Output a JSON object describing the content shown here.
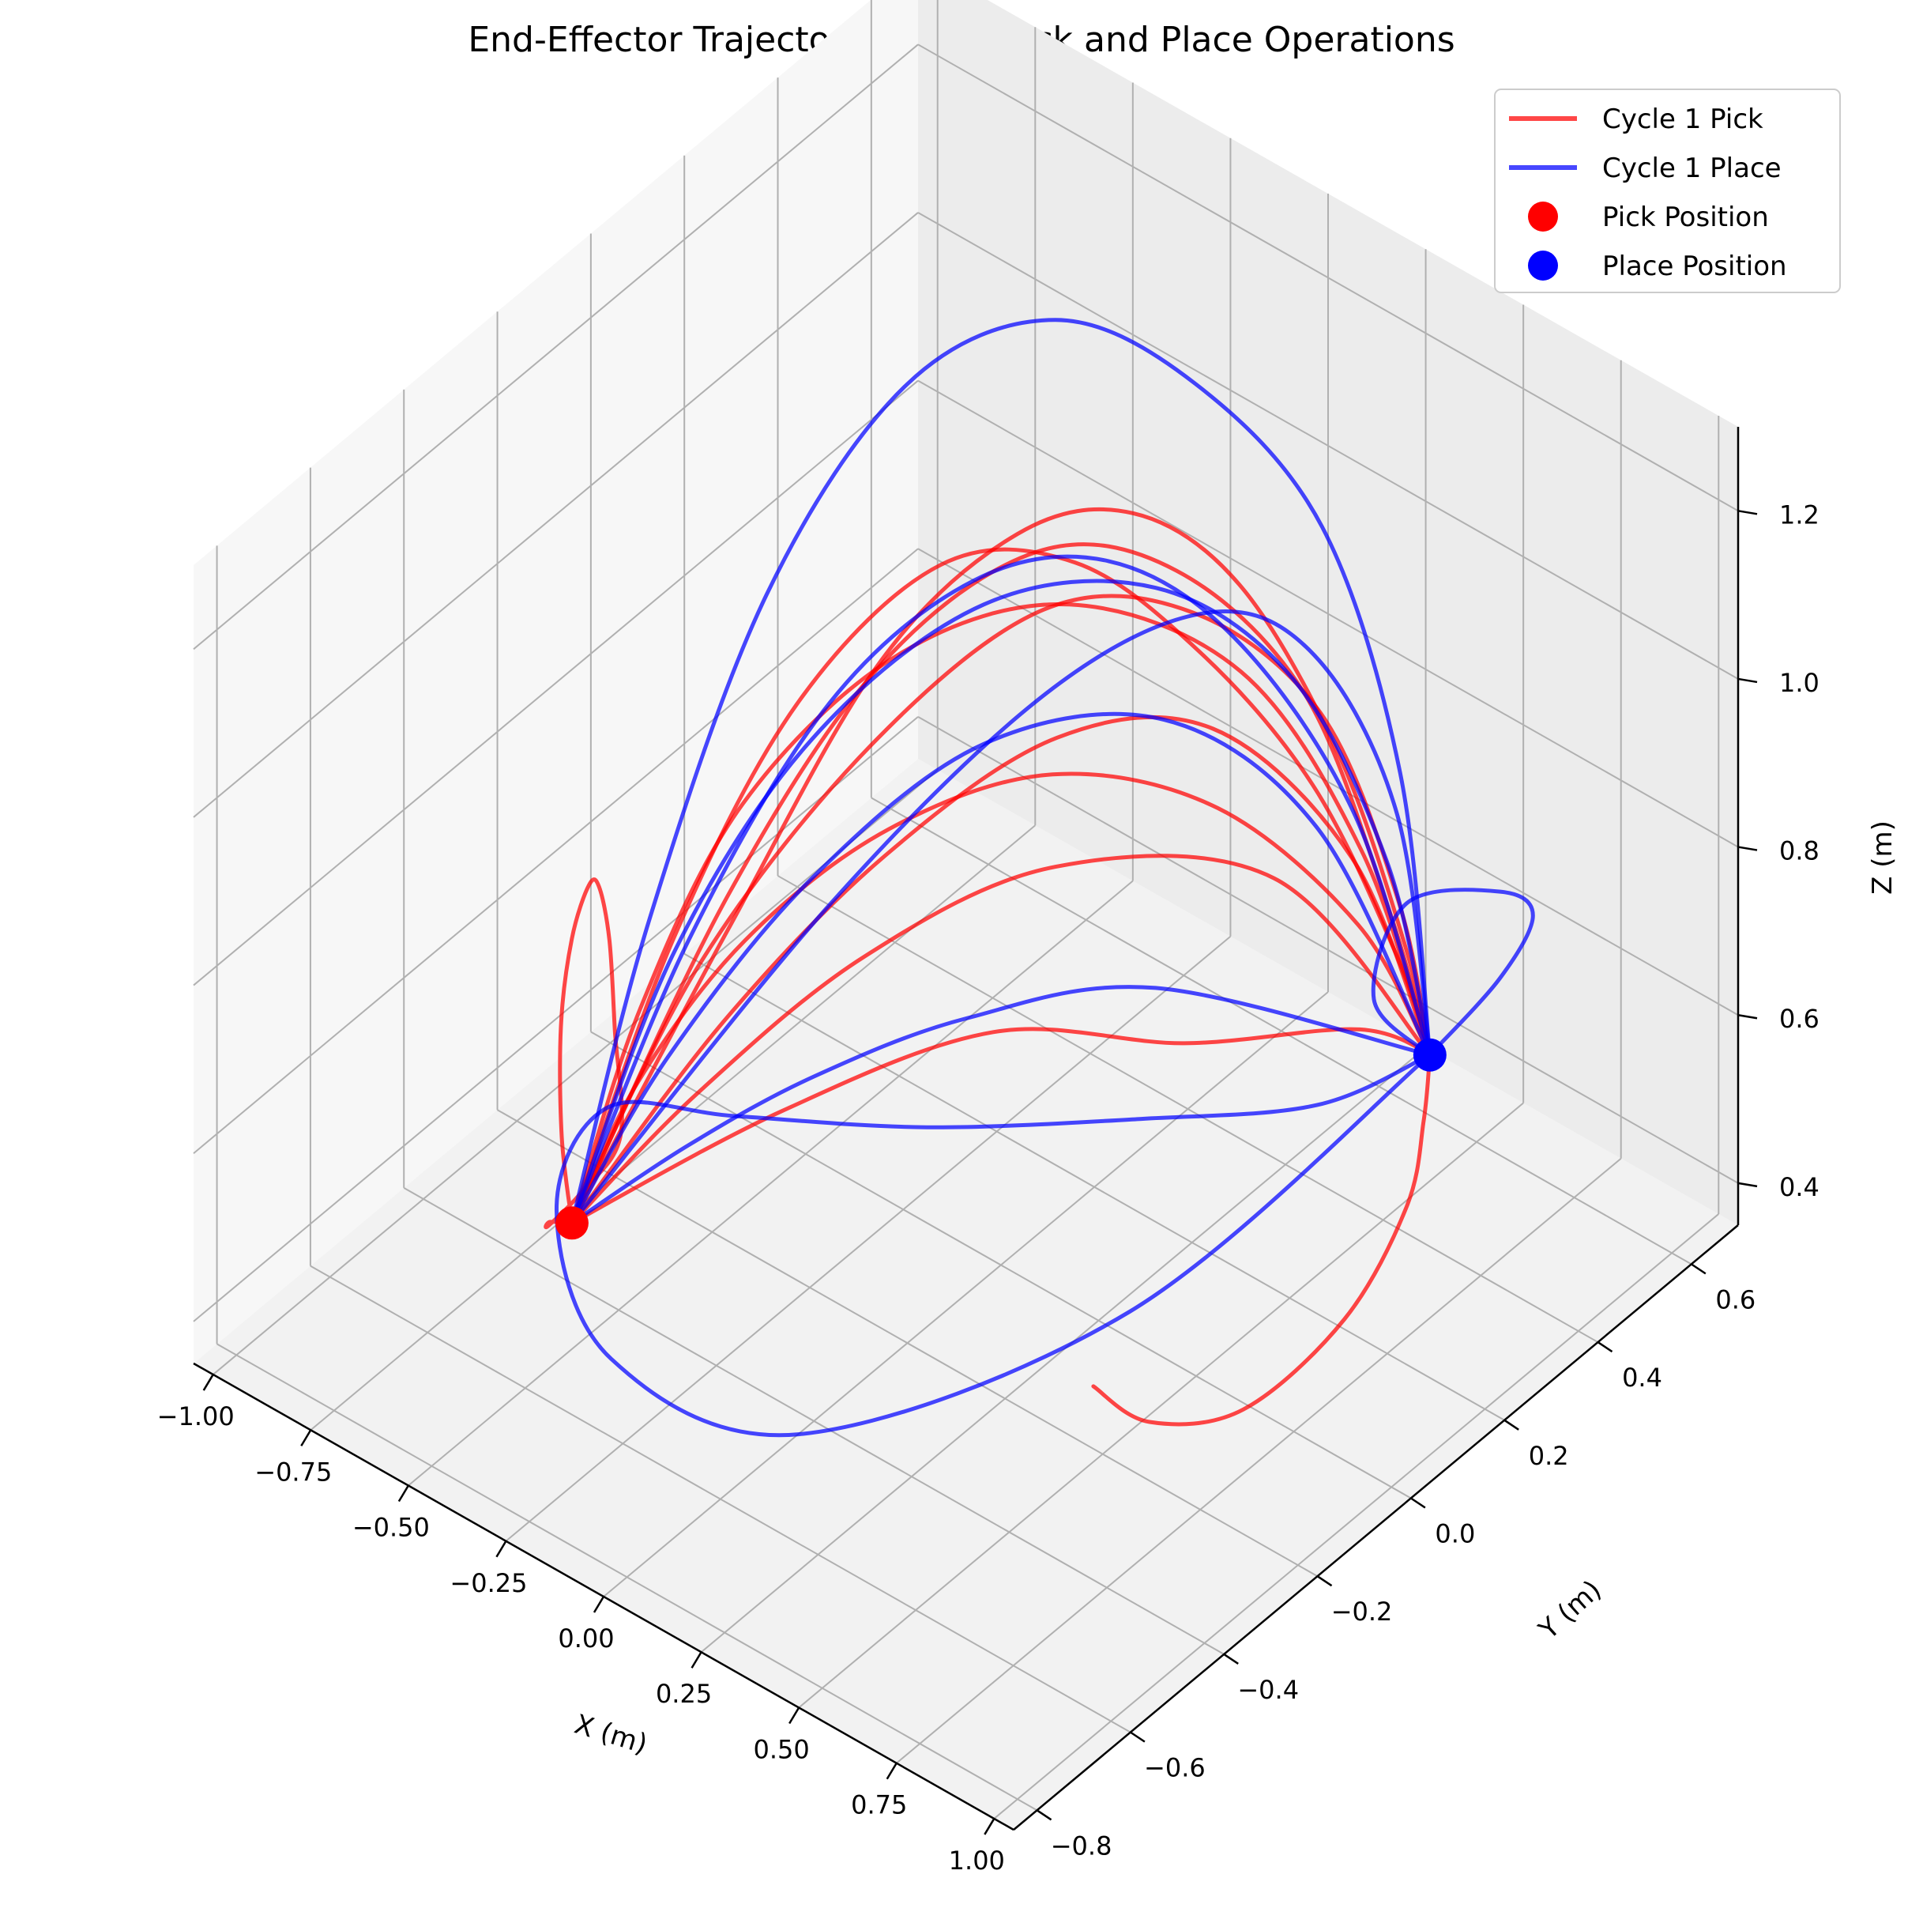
{
  "chart_data": {
    "type": "line",
    "projection": "3d",
    "title": "End-Effector Trajectory During Pick and Place Operations",
    "xlabel": "X (m)",
    "ylabel": "Y (m)",
    "zlabel": "Z (m)",
    "xlim": [
      -1.05,
      1.05
    ],
    "ylim": [
      -0.85,
      0.7
    ],
    "zlim": [
      0.35,
      1.3
    ],
    "xticks": [
      -1.0,
      -0.75,
      -0.5,
      -0.25,
      0.0,
      0.25,
      0.5,
      0.75,
      1.0
    ],
    "xtick_labels": [
      "−1.00",
      "−0.75",
      "−0.50",
      "−0.25",
      "0.00",
      "0.25",
      "0.50",
      "0.75",
      "1.00"
    ],
    "yticks": [
      -0.8,
      -0.6,
      -0.4,
      -0.2,
      0.0,
      0.2,
      0.4,
      0.6
    ],
    "ytick_labels": [
      "−0.8",
      "−0.6",
      "−0.4",
      "−0.2",
      "0.0",
      "0.2",
      "0.4",
      "0.6"
    ],
    "zticks": [
      0.4,
      0.6,
      0.8,
      1.0,
      1.2
    ],
    "ztick_labels": [
      "0.4",
      "0.6",
      "0.8",
      "1.0",
      "1.2"
    ],
    "grid": true,
    "legend_position": "top-right",
    "legend": [
      {
        "label": "Cycle 1 Pick",
        "kind": "line",
        "color": "#ff0000"
      },
      {
        "label": "Cycle 1 Place",
        "kind": "line",
        "color": "#0000ff"
      },
      {
        "label": "Pick Position",
        "kind": "marker",
        "color": "#ff0000"
      },
      {
        "label": "Place Position",
        "kind": "marker",
        "color": "#0000ff"
      }
    ],
    "pick_position": {
      "x": -0.5,
      "y": -0.5,
      "z": 0.5
    },
    "place_position": {
      "x": 0.5,
      "y": 0.5,
      "z": 0.5
    },
    "series": [
      {
        "role": "pick",
        "color": "#ff0000",
        "x": [
          -0.5,
          -0.55,
          -0.6,
          -0.62,
          -0.6,
          -0.55,
          -0.5,
          -0.45,
          -0.4,
          -0.45,
          -0.5,
          -0.52,
          -0.5
        ],
        "y": [
          -0.5,
          -0.48,
          -0.44,
          -0.4,
          -0.38,
          -0.4,
          -0.42,
          -0.45,
          -0.48,
          -0.52,
          -0.55,
          -0.53,
          -0.5
        ],
        "z": [
          0.5,
          0.58,
          0.68,
          0.76,
          0.82,
          0.84,
          0.8,
          0.72,
          0.62,
          0.56,
          0.52,
          0.51,
          0.5
        ]
      },
      {
        "role": "pick",
        "color": "#ff0000",
        "x": [
          -0.5,
          -0.35,
          -0.15,
          0.05,
          0.25,
          0.4,
          0.48,
          0.5
        ],
        "y": [
          -0.5,
          -0.35,
          -0.15,
          0.05,
          0.2,
          0.35,
          0.45,
          0.5
        ],
        "z": [
          0.5,
          0.78,
          1.0,
          1.12,
          1.1,
          0.95,
          0.7,
          0.5
        ]
      },
      {
        "role": "pick",
        "color": "#ff0000",
        "x": [
          -0.5,
          -0.4,
          -0.25,
          -0.05,
          0.15,
          0.32,
          0.44,
          0.5
        ],
        "y": [
          -0.5,
          -0.25,
          -0.05,
          0.12,
          0.25,
          0.38,
          0.46,
          0.5
        ],
        "z": [
          0.5,
          0.8,
          1.02,
          1.13,
          1.1,
          0.94,
          0.68,
          0.5
        ]
      },
      {
        "role": "pick",
        "color": "#ff0000",
        "x": [
          -0.5,
          -0.42,
          -0.3,
          -0.12,
          0.08,
          0.28,
          0.42,
          0.5
        ],
        "y": [
          -0.5,
          -0.42,
          -0.3,
          -0.12,
          0.08,
          0.28,
          0.42,
          0.5
        ],
        "z": [
          0.5,
          0.74,
          0.96,
          1.1,
          1.12,
          1.0,
          0.76,
          0.5
        ]
      },
      {
        "role": "pick",
        "color": "#ff0000",
        "x": [
          -0.5,
          -0.3,
          -0.05,
          0.2,
          0.4,
          0.5
        ],
        "y": [
          -0.5,
          -0.4,
          -0.25,
          -0.05,
          0.25,
          0.5
        ],
        "z": [
          0.5,
          0.66,
          0.82,
          0.9,
          0.8,
          0.5
        ]
      },
      {
        "role": "pick",
        "color": "#ff0000",
        "x": [
          -0.5,
          -0.48,
          -0.4,
          -0.25,
          -0.05,
          0.15,
          0.32,
          0.45,
          0.5
        ],
        "y": [
          -0.5,
          -0.3,
          -0.1,
          0.08,
          0.2,
          0.3,
          0.4,
          0.47,
          0.5
        ],
        "z": [
          0.5,
          0.75,
          0.96,
          1.08,
          1.08,
          0.98,
          0.82,
          0.62,
          0.5
        ]
      },
      {
        "role": "pick",
        "color": "#ff0000",
        "x": [
          -0.5,
          -0.38,
          -0.2,
          0.0,
          0.18,
          0.34,
          0.46,
          0.5
        ],
        "y": [
          -0.5,
          -0.46,
          -0.38,
          -0.24,
          -0.04,
          0.18,
          0.38,
          0.5
        ],
        "z": [
          0.5,
          0.68,
          0.86,
          0.98,
          1.0,
          0.9,
          0.7,
          0.5
        ]
      },
      {
        "role": "pick",
        "color": "#ff0000",
        "x": [
          0.5,
          0.58,
          0.68,
          0.76,
          0.74,
          0.62,
          0.5
        ],
        "y": [
          0.5,
          0.42,
          0.3,
          0.1,
          -0.1,
          -0.2,
          -0.22
        ],
        "z": [
          0.5,
          0.48,
          0.46,
          0.44,
          0.42,
          0.42,
          0.44
        ]
      },
      {
        "role": "pick",
        "color": "#ff0000",
        "x": [
          -0.5,
          -0.2,
          0.1,
          0.35,
          0.5,
          0.58,
          0.5
        ],
        "y": [
          -0.5,
          -0.3,
          -0.1,
          0.1,
          0.35,
          0.45,
          0.5
        ],
        "z": [
          0.5,
          0.62,
          0.7,
          0.66,
          0.6,
          0.54,
          0.5
        ]
      },
      {
        "role": "pick",
        "color": "#ff0000",
        "x": [
          -0.5,
          -0.3,
          -0.08,
          0.12,
          0.28,
          0.42,
          0.5
        ],
        "y": [
          -0.5,
          -0.34,
          -0.18,
          0.02,
          0.22,
          0.4,
          0.5
        ],
        "z": [
          0.5,
          0.72,
          0.9,
          1.0,
          0.96,
          0.76,
          0.5
        ]
      },
      {
        "role": "pick",
        "color": "#ff0000",
        "x": [
          -0.5,
          -0.46,
          -0.38,
          -0.22,
          -0.02,
          0.18,
          0.36,
          0.47,
          0.5
        ],
        "y": [
          -0.5,
          -0.2,
          0.06,
          0.22,
          0.3,
          0.36,
          0.42,
          0.47,
          0.5
        ],
        "z": [
          0.5,
          0.72,
          0.94,
          1.06,
          1.1,
          1.04,
          0.86,
          0.64,
          0.5
        ]
      }
    ],
    "place_series": [
      {
        "role": "place",
        "color": "#0000ff",
        "x": [
          -0.5,
          -0.6,
          -0.66,
          -0.6,
          -0.4,
          -0.1,
          0.2,
          0.4,
          0.5
        ],
        "y": [
          -0.5,
          -0.25,
          0.05,
          0.3,
          0.45,
          0.5,
          0.52,
          0.52,
          0.5
        ],
        "z": [
          0.5,
          0.72,
          0.95,
          1.1,
          1.16,
          1.14,
          1.04,
          0.8,
          0.5
        ]
      },
      {
        "role": "place",
        "color": "#0000ff",
        "x": [
          -0.5,
          -0.38,
          -0.22,
          -0.02,
          0.18,
          0.34,
          0.45,
          0.5
        ],
        "y": [
          -0.5,
          -0.38,
          -0.22,
          -0.02,
          0.18,
          0.34,
          0.45,
          0.5
        ],
        "z": [
          0.5,
          0.8,
          1.02,
          1.14,
          1.12,
          0.98,
          0.74,
          0.5
        ]
      },
      {
        "role": "place",
        "color": "#0000ff",
        "x": [
          -0.5,
          -0.44,
          -0.32,
          -0.14,
          0.06,
          0.24,
          0.4,
          0.5
        ],
        "y": [
          -0.5,
          -0.3,
          -0.1,
          0.06,
          0.18,
          0.3,
          0.42,
          0.5
        ],
        "z": [
          0.5,
          0.76,
          0.98,
          1.1,
          1.12,
          1.02,
          0.8,
          0.5
        ]
      },
      {
        "role": "place",
        "color": "#0000ff",
        "x": [
          -0.5,
          -0.25,
          0.0,
          0.25,
          0.42,
          0.5
        ],
        "y": [
          -0.5,
          -0.46,
          -0.4,
          -0.28,
          -0.02,
          0.5
        ],
        "z": [
          0.5,
          0.64,
          0.76,
          0.84,
          0.8,
          0.5
        ]
      },
      {
        "role": "place",
        "color": "#0000ff",
        "x": [
          -0.5,
          -0.35,
          -0.15,
          0.05,
          0.25,
          0.4,
          0.5
        ],
        "y": [
          -0.5,
          -0.42,
          -0.28,
          -0.08,
          0.14,
          0.34,
          0.5
        ],
        "z": [
          0.5,
          0.7,
          0.9,
          1.02,
          1.0,
          0.82,
          0.5
        ]
      },
      {
        "role": "place",
        "color": "#0000ff",
        "x": [
          0.5,
          0.45,
          0.3,
          0.05,
          -0.2,
          -0.35,
          -0.3,
          -0.1,
          0.2,
          0.45,
          0.5
        ],
        "y": [
          0.5,
          0.3,
          0.05,
          -0.2,
          -0.4,
          -0.55,
          -0.7,
          -0.75,
          -0.6,
          -0.1,
          0.5
        ],
        "z": [
          0.5,
          0.52,
          0.58,
          0.62,
          0.66,
          0.7,
          0.66,
          0.56,
          0.48,
          0.46,
          0.5
        ]
      },
      {
        "role": "place",
        "color": "#0000ff",
        "x": [
          0.5,
          0.62,
          0.74,
          0.8,
          0.74,
          0.62,
          0.5
        ],
        "y": [
          0.5,
          0.55,
          0.52,
          0.4,
          0.25,
          0.28,
          0.5
        ],
        "z": [
          0.5,
          0.6,
          0.72,
          0.82,
          0.86,
          0.7,
          0.5
        ]
      },
      {
        "role": "place",
        "color": "#0000ff",
        "x": [
          -0.5,
          -0.32,
          -0.1,
          0.12,
          0.3,
          0.44,
          0.5
        ],
        "y": [
          -0.5,
          -0.1,
          0.18,
          0.34,
          0.42,
          0.48,
          0.5
        ],
        "z": [
          0.5,
          0.74,
          0.92,
          1.0,
          0.96,
          0.78,
          0.5
        ]
      }
    ]
  }
}
